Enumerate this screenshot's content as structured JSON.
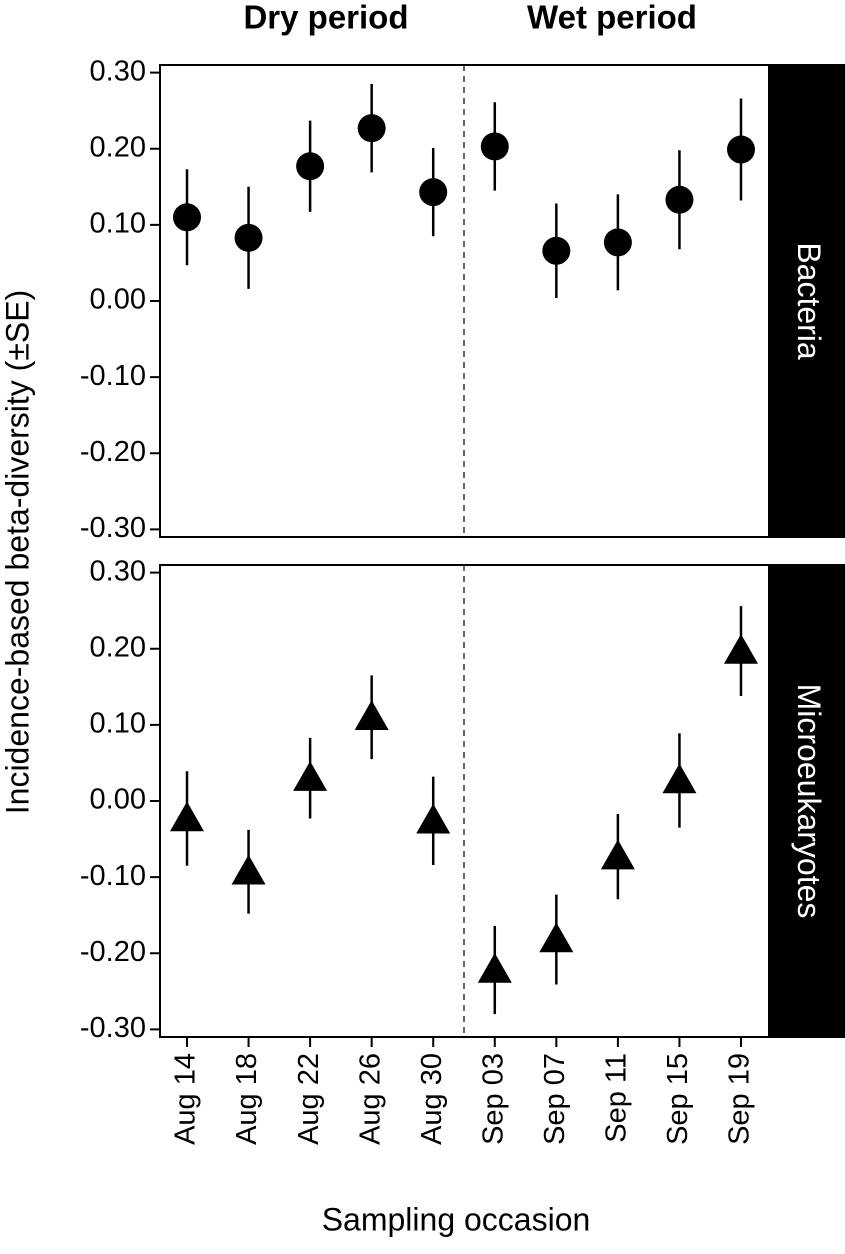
{
  "chart_data": {
    "type": "errorbar",
    "annotations": [
      "Dry period",
      "Wet period"
    ],
    "x_label": "Sampling occasion",
    "y_label": "Incidence-based beta-diversity (±SE)",
    "categories": [
      "Aug 14",
      "Aug 18",
      "Aug 22",
      "Aug 26",
      "Aug 30",
      "Sep 03",
      "Sep 07",
      "Sep 11",
      "Sep 15",
      "Sep 19"
    ],
    "ylim": [
      -0.31,
      0.31
    ],
    "yticks": [
      {
        "value": -0.3,
        "label": "-0.30"
      },
      {
        "value": -0.2,
        "label": "-0.20"
      },
      {
        "value": -0.1,
        "label": "-0.10"
      },
      {
        "value": 0,
        "label": "0.00"
      },
      {
        "value": 0.1,
        "label": "0.10"
      },
      {
        "value": 0.2,
        "label": "0.20"
      },
      {
        "value": 0.3,
        "label": "0.30"
      }
    ],
    "color": "#000000",
    "panels": [
      {
        "label": "Bacteria",
        "marker": "circle",
        "values": [
          0.11,
          0.083,
          0.177,
          0.227,
          0.143,
          0.203,
          0.066,
          0.077,
          0.133,
          0.199
        ],
        "errors": [
          0.063,
          0.067,
          0.06,
          0.058,
          0.058,
          0.058,
          0.062,
          0.063,
          0.065,
          0.067
        ]
      },
      {
        "label": "Microeukaryotes",
        "marker": "triangle",
        "values": [
          -0.023,
          -0.093,
          0.03,
          0.11,
          -0.026,
          -0.222,
          -0.182,
          -0.073,
          0.027,
          0.197
        ],
        "errors": [
          0.062,
          0.055,
          0.053,
          0.055,
          0.058,
          0.058,
          0.059,
          0.056,
          0.062,
          0.059
        ]
      }
    ]
  }
}
